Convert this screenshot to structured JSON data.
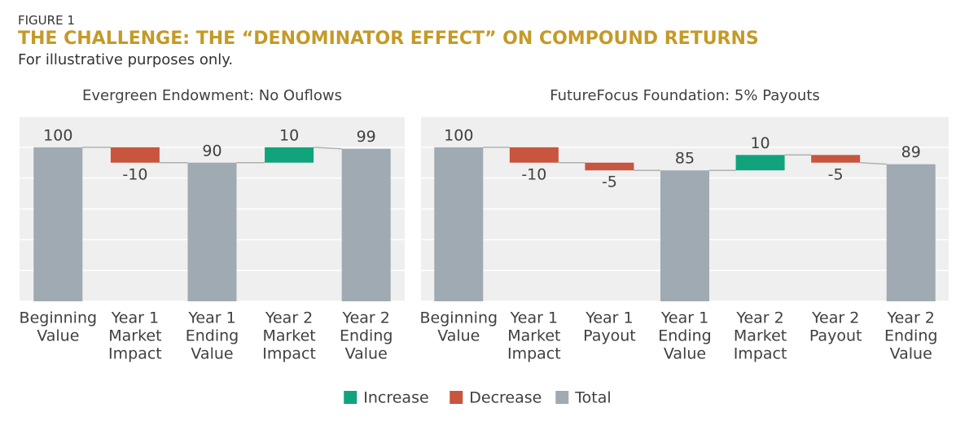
{
  "header": {
    "figure": "FIGURE 1",
    "title": "THE CHALLENGE: THE “DENOMINATOR EFFECT” ON COMPOUND RETURNS",
    "subtitle": "For illustrative purposes only."
  },
  "legend": [
    {
      "name": "Increase",
      "color": "#10a37c"
    },
    {
      "name": "Decrease",
      "color": "#c8553d"
    },
    {
      "name": "Total",
      "color": "#a0aab2"
    }
  ],
  "chart_data": [
    {
      "type": "waterfall",
      "title": "Evergreen Endowment: No Ouflows",
      "categories": [
        [
          "Beginning",
          "Value"
        ],
        [
          "Year 1",
          "Market",
          "Impact"
        ],
        [
          "Year 1",
          "Ending",
          "Value"
        ],
        [
          "Year 2",
          "Market",
          "Impact"
        ],
        [
          "Year 2",
          "Ending",
          "Value"
        ]
      ],
      "measure": [
        "total",
        "relative",
        "total",
        "relative",
        "total"
      ],
      "values": [
        100,
        -10,
        90,
        10,
        99
      ],
      "colors": {
        "increase": "#10a37c",
        "decrease": "#c8553d",
        "total": "#a0aab2"
      },
      "ylim": [
        0,
        120
      ],
      "yticks": [
        0,
        20,
        40,
        60,
        80,
        100,
        120
      ],
      "grid": true
    },
    {
      "type": "waterfall",
      "title": "FutureFocus Foundation: 5% Payouts",
      "categories": [
        [
          "Beginning",
          "Value"
        ],
        [
          "Year 1",
          "Market",
          "Impact"
        ],
        [
          "Year 1",
          "Payout"
        ],
        [
          "Year 1",
          "Ending",
          "Value"
        ],
        [
          "Year 2",
          "Market",
          "Impact"
        ],
        [
          "Year 2",
          "Payout"
        ],
        [
          "Year 2",
          "Ending",
          "Value"
        ]
      ],
      "measure": [
        "total",
        "relative",
        "relative",
        "total",
        "relative",
        "relative",
        "total"
      ],
      "values": [
        100,
        -10,
        -5,
        85,
        10,
        -5,
        89
      ],
      "colors": {
        "increase": "#10a37c",
        "decrease": "#c8553d",
        "total": "#a0aab2"
      },
      "ylim": [
        0,
        120
      ],
      "yticks": [
        0,
        20,
        40,
        60,
        80,
        100,
        120
      ],
      "grid": true
    }
  ]
}
